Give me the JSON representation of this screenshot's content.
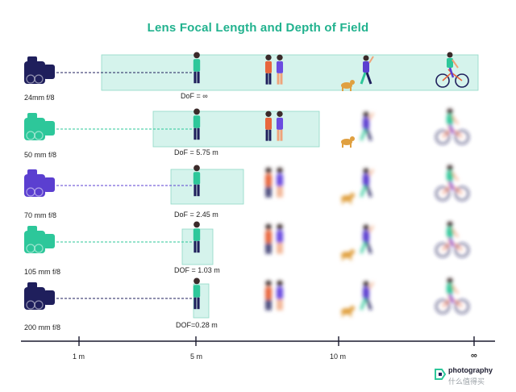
{
  "title": "Lens Focal Length and Depth of Field",
  "rows": [
    {
      "lens": "24mm f/8",
      "dof": "DoF = ∞",
      "camera_color": "#1f1f5c"
    },
    {
      "lens": "50 mm f/8",
      "dof": "DoF = 5.75 m",
      "camera_color": "#2dc79a"
    },
    {
      "lens": "70 mm f/8",
      "dof": "DoF = 2.45 m",
      "camera_color": "#5b3fd0"
    },
    {
      "lens": "105 mm f/8",
      "dof": "DOF = 1.03 m",
      "camera_color": "#2dc79a"
    },
    {
      "lens": "200 mm  f/8",
      "dof": "DOF=0.28 m",
      "camera_color": "#1f1f5c"
    }
  ],
  "axis": {
    "ticks": [
      "1 m",
      "5 m",
      "10 m",
      "∞"
    ]
  },
  "logo": {
    "name": "photography",
    "sub": "什么值得买"
  },
  "colors": {
    "accent": "#21b28e",
    "dof_fill": "#d5f3ec",
    "dof_stroke": "#8fd9c7"
  }
}
